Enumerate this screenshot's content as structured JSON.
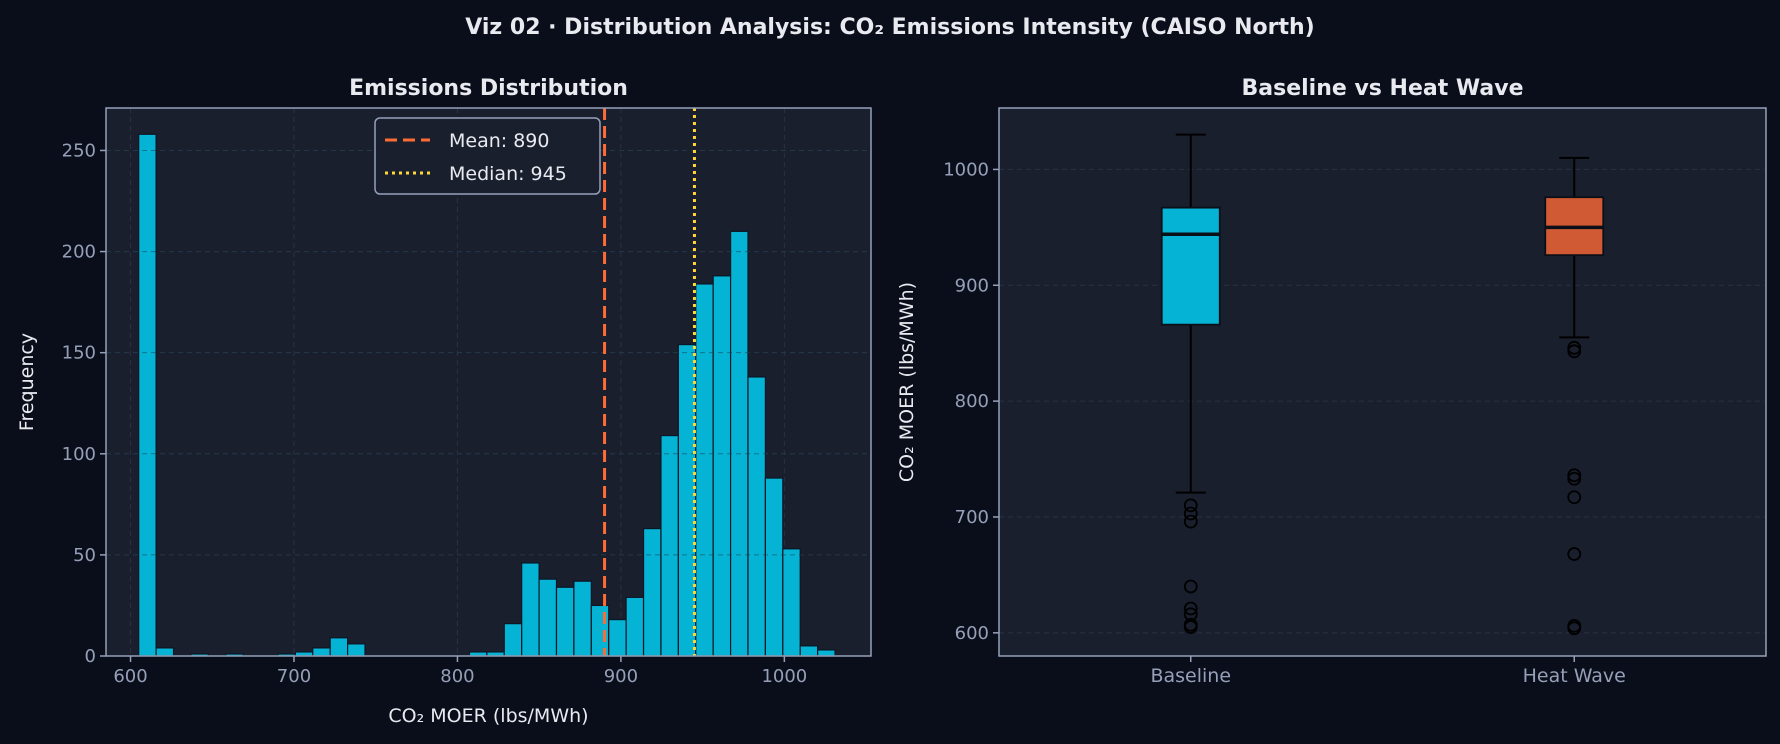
{
  "suptitle": "Viz 02 · Distribution Analysis: CO₂ Emissions Intensity (CAISO North)",
  "colors": {
    "background": "#0a0e1a",
    "axes": "#1a1f2e",
    "bar": "#05b4d4",
    "mean": "#ff6b35",
    "median": "#fdd835",
    "heatwave": "#d05a33",
    "text": "#e8eaf0",
    "tick": "#95a0b8"
  },
  "chart_data": [
    {
      "type": "bar",
      "subtype": "histogram",
      "title": "Emissions Distribution",
      "xlabel": "CO₂ MOER (lbs/MWh)",
      "ylabel": "Frequency",
      "xlim": [
        585,
        1053
      ],
      "ylim": [
        0,
        271
      ],
      "xticks": [
        600,
        700,
        800,
        900,
        1000
      ],
      "yticks": [
        0,
        50,
        100,
        150,
        200,
        250
      ],
      "grid": true,
      "bin_start": 605,
      "bin_width": 10.65,
      "counts": [
        258,
        4,
        0,
        1,
        0,
        1,
        0,
        0,
        1,
        2,
        4,
        9,
        6,
        0,
        0,
        0,
        0,
        0,
        0,
        2,
        2,
        16,
        46,
        38,
        34,
        37,
        25,
        18,
        29,
        63,
        109,
        154,
        184,
        188,
        210,
        138,
        88,
        53,
        5,
        3
      ],
      "lines": [
        {
          "label": "Mean: 890",
          "value": 890,
          "style": "dashed"
        },
        {
          "label": "Median: 945",
          "value": 945,
          "style": "dotted"
        }
      ],
      "legend": "top-center"
    },
    {
      "type": "box",
      "title": "Baseline vs Heat Wave",
      "ylabel": "CO₂ MOER (lbs/MWh)",
      "ylim": [
        580,
        1053
      ],
      "yticks": [
        600,
        700,
        800,
        900,
        1000
      ],
      "grid": true,
      "categories": [
        "Baseline",
        "Heat Wave"
      ],
      "boxes": [
        {
          "name": "Baseline",
          "whisker_low": 721,
          "q1": 866,
          "median": 944,
          "q3": 967,
          "whisker_high": 1030,
          "outliers": [
            710,
            703,
            696,
            640,
            621,
            616,
            607,
            605
          ]
        },
        {
          "name": "Heat Wave",
          "whisker_low": 855,
          "q1": 926,
          "median": 950,
          "q3": 976,
          "whisker_high": 1010,
          "outliers": [
            846,
            843,
            736,
            733,
            717,
            668,
            606,
            604
          ]
        }
      ]
    }
  ]
}
